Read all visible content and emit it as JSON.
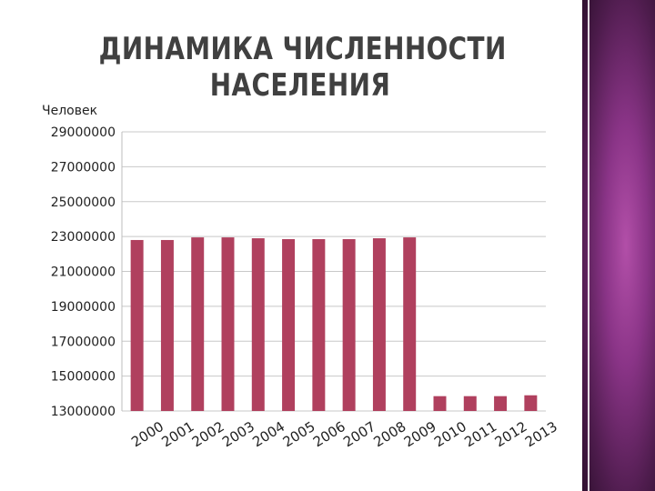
{
  "slide": {
    "title_line1": "ДИНАМИКА ЧИСЛЕННОСТИ",
    "title_line2": "НАСЕЛЕНИЯ"
  },
  "chart_data": {
    "type": "bar",
    "title": "ДИНАМИКА ЧИСЛЕННОСТИ НАСЕЛЕНИЯ",
    "ylabel": "Человек",
    "xlabel": "",
    "ylim": [
      13000000,
      29000000
    ],
    "yticks": [
      29000000,
      27000000,
      25000000,
      23000000,
      21000000,
      19000000,
      17000000,
      15000000,
      13000000
    ],
    "grid": true,
    "categories": [
      "2000",
      "2001",
      "2002",
      "2003",
      "2004",
      "2005",
      "2006",
      "2007",
      "2008",
      "2009",
      "2010",
      "2011",
      "2012",
      "2013"
    ],
    "values": [
      22800000,
      22800000,
      22950000,
      22950000,
      22900000,
      22850000,
      22850000,
      22850000,
      22900000,
      22950000,
      13850000,
      13850000,
      13850000,
      13900000
    ],
    "bar_color": "#b0405e"
  }
}
